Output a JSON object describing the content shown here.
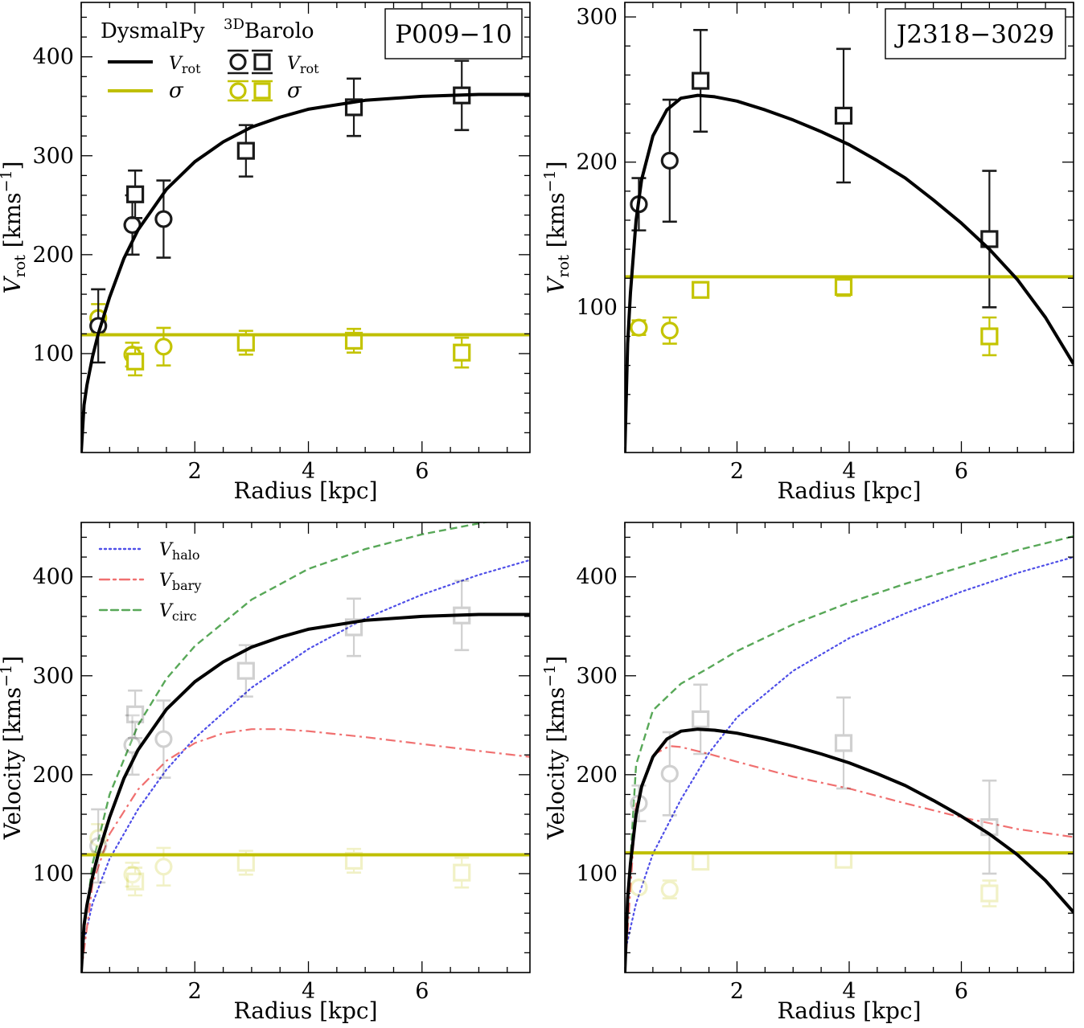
{
  "colors": {
    "model": "#000000",
    "sigma": "#bfbf00",
    "halo": "#4f4fe8",
    "bary": "#f07070",
    "circ": "#58a858",
    "data_rot": "#1a1a1a",
    "data_sig": "#c4c400"
  },
  "legend_top": {
    "dysmal_title": "DysmalPy",
    "barolo_sup": "3D",
    "barolo_main": "Barolo",
    "vrot_v": "V",
    "vrot_sub": "rot",
    "sigma": "σ"
  },
  "legend_bottom": [
    {
      "v": "V",
      "sub": "halo"
    },
    {
      "v": "V",
      "sub": "bary"
    },
    {
      "v": "V",
      "sub": "circ"
    }
  ],
  "chart_data": [
    {
      "id": "P009-10-top",
      "type": "line",
      "title": "P009−10",
      "xlabel": "Radius [kpc]",
      "ylabel_v": "V",
      "ylabel_sub": "rot",
      "ylabel_unit": " [kms",
      "ylabel_sup": "−1",
      "ylabel_end": "]",
      "xlim": [
        0,
        7.9
      ],
      "ylim": [
        0,
        455
      ],
      "xticks": [
        2,
        4,
        6
      ],
      "yticks": [
        100,
        200,
        300,
        400
      ],
      "model_vrot": [
        [
          0.0,
          0
        ],
        [
          0.05,
          48
        ],
        [
          0.1,
          68
        ],
        [
          0.2,
          97
        ],
        [
          0.3,
          120
        ],
        [
          0.5,
          157
        ],
        [
          0.75,
          196
        ],
        [
          1.0,
          225
        ],
        [
          1.5,
          266
        ],
        [
          2.0,
          294
        ],
        [
          2.5,
          314
        ],
        [
          3.0,
          329
        ],
        [
          3.5,
          339
        ],
        [
          4.0,
          347
        ],
        [
          5.0,
          356
        ],
        [
          6.0,
          360
        ],
        [
          7.0,
          362
        ],
        [
          7.9,
          362
        ]
      ],
      "model_sigma": 119,
      "circles_vrot": [
        [
          0.3,
          128,
          37
        ],
        [
          0.9,
          230,
          30
        ],
        [
          1.45,
          236,
          39
        ]
      ],
      "squares_vrot": [
        [
          0.95,
          261,
          24
        ],
        [
          2.9,
          305,
          26
        ],
        [
          4.8,
          349,
          29
        ],
        [
          6.7,
          361,
          35
        ]
      ],
      "circles_sigma": [
        [
          0.3,
          136,
          14
        ],
        [
          0.9,
          99,
          12
        ],
        [
          1.45,
          107,
          19
        ]
      ],
      "squares_sigma": [
        [
          0.95,
          92,
          14
        ],
        [
          2.9,
          111,
          12
        ],
        [
          4.8,
          113,
          12
        ],
        [
          6.7,
          101,
          15
        ]
      ]
    },
    {
      "id": "J2318-3029-top",
      "type": "line",
      "title": "J2318−3029",
      "xlabel": "Radius [kpc]",
      "ylabel_v": "V",
      "ylabel_sub": "rot",
      "ylabel_unit": " [kms",
      "ylabel_sup": "−1",
      "ylabel_end": "]",
      "xlim": [
        0,
        8.0
      ],
      "ylim": [
        0,
        310
      ],
      "xticks": [
        2,
        4,
        6
      ],
      "yticks": [
        100,
        200,
        300
      ],
      "model_vrot": [
        [
          0.0,
          0
        ],
        [
          0.05,
          75
        ],
        [
          0.1,
          110
        ],
        [
          0.2,
          160
        ],
        [
          0.3,
          188
        ],
        [
          0.5,
          218
        ],
        [
          0.75,
          236
        ],
        [
          1.0,
          244
        ],
        [
          1.3,
          246
        ],
        [
          1.6,
          245
        ],
        [
          2.0,
          242
        ],
        [
          2.5,
          236
        ],
        [
          3.0,
          229
        ],
        [
          3.5,
          221
        ],
        [
          4.0,
          212
        ],
        [
          4.5,
          201
        ],
        [
          5.0,
          189
        ],
        [
          5.5,
          174
        ],
        [
          6.0,
          158
        ],
        [
          6.5,
          140
        ],
        [
          7.0,
          119
        ],
        [
          7.5,
          93
        ],
        [
          8.0,
          61
        ]
      ],
      "model_sigma": 121,
      "circles_vrot": [
        [
          0.25,
          171,
          18
        ],
        [
          0.8,
          201,
          42
        ]
      ],
      "squares_vrot": [
        [
          1.35,
          256,
          35
        ],
        [
          3.9,
          232,
          46
        ],
        [
          6.5,
          147,
          47
        ]
      ],
      "circles_sigma": [
        [
          0.25,
          86,
          5
        ],
        [
          0.8,
          84,
          9
        ]
      ],
      "squares_sigma": [
        [
          1.35,
          112,
          4
        ],
        [
          3.9,
          114,
          6
        ],
        [
          6.5,
          80,
          13
        ]
      ]
    },
    {
      "id": "P009-10-bottom",
      "type": "line",
      "xlabel": "Radius [kpc]",
      "ylabel": "Velocity [kms",
      "ylabel_sup": "−1",
      "ylabel_end": "]",
      "xlim": [
        0,
        7.9
      ],
      "ylim": [
        0,
        455
      ],
      "xticks": [
        2,
        4,
        6
      ],
      "yticks": [
        100,
        200,
        300,
        400
      ],
      "model_vrot": [
        [
          0.0,
          0
        ],
        [
          0.05,
          48
        ],
        [
          0.1,
          68
        ],
        [
          0.2,
          97
        ],
        [
          0.3,
          120
        ],
        [
          0.5,
          157
        ],
        [
          0.75,
          196
        ],
        [
          1.0,
          225
        ],
        [
          1.5,
          266
        ],
        [
          2.0,
          294
        ],
        [
          2.5,
          314
        ],
        [
          3.0,
          329
        ],
        [
          3.5,
          339
        ],
        [
          4.0,
          347
        ],
        [
          5.0,
          356
        ],
        [
          6.0,
          360
        ],
        [
          7.0,
          362
        ],
        [
          7.9,
          362
        ]
      ],
      "model_sigma": 119,
      "v_halo": [
        [
          0.0,
          20
        ],
        [
          0.2,
          70
        ],
        [
          0.5,
          115
        ],
        [
          1.0,
          165
        ],
        [
          1.5,
          205
        ],
        [
          2.0,
          237
        ],
        [
          3.0,
          288
        ],
        [
          4.0,
          327
        ],
        [
          5.0,
          358
        ],
        [
          6.0,
          382
        ],
        [
          7.0,
          402
        ],
        [
          7.9,
          417
        ]
      ],
      "v_bary": [
        [
          0.0,
          0
        ],
        [
          0.2,
          90
        ],
        [
          0.5,
          140
        ],
        [
          1.0,
          185
        ],
        [
          1.5,
          214
        ],
        [
          2.0,
          232
        ],
        [
          2.5,
          242
        ],
        [
          3.0,
          246
        ],
        [
          3.5,
          246
        ],
        [
          4.0,
          244
        ],
        [
          5.0,
          238
        ],
        [
          6.0,
          231
        ],
        [
          7.0,
          224
        ],
        [
          7.9,
          218
        ]
      ],
      "v_circ": [
        [
          0.0,
          20
        ],
        [
          0.2,
          110
        ],
        [
          0.5,
          180
        ],
        [
          1.0,
          250
        ],
        [
          1.5,
          297
        ],
        [
          2.0,
          330
        ],
        [
          3.0,
          377
        ],
        [
          4.0,
          408
        ],
        [
          5.0,
          428
        ],
        [
          6.0,
          443
        ],
        [
          7.0,
          454
        ],
        [
          7.9,
          463
        ]
      ],
      "circles_vrot": [
        [
          0.3,
          128,
          37
        ],
        [
          0.9,
          230,
          30
        ],
        [
          1.45,
          236,
          39
        ]
      ],
      "squares_vrot": [
        [
          0.95,
          261,
          24
        ],
        [
          2.9,
          305,
          26
        ],
        [
          4.8,
          349,
          29
        ],
        [
          6.7,
          361,
          35
        ]
      ],
      "circles_sigma": [
        [
          0.3,
          136,
          14
        ],
        [
          0.9,
          99,
          12
        ],
        [
          1.45,
          107,
          19
        ]
      ],
      "squares_sigma": [
        [
          0.95,
          92,
          14
        ],
        [
          2.9,
          111,
          12
        ],
        [
          4.8,
          113,
          12
        ],
        [
          6.7,
          101,
          15
        ]
      ]
    },
    {
      "id": "J2318-3029-bottom",
      "type": "line",
      "xlabel": "Radius [kpc]",
      "ylabel": "Velocity [kms",
      "ylabel_sup": "−1",
      "ylabel_end": "]",
      "xlim": [
        0,
        8.0
      ],
      "ylim": [
        0,
        455
      ],
      "xticks": [
        2,
        4,
        6
      ],
      "yticks": [
        100,
        200,
        300,
        400
      ],
      "model_vrot": [
        [
          0.0,
          0
        ],
        [
          0.05,
          75
        ],
        [
          0.1,
          110
        ],
        [
          0.2,
          160
        ],
        [
          0.3,
          188
        ],
        [
          0.5,
          218
        ],
        [
          0.75,
          236
        ],
        [
          1.0,
          244
        ],
        [
          1.3,
          246
        ],
        [
          1.6,
          245
        ],
        [
          2.0,
          242
        ],
        [
          2.5,
          236
        ],
        [
          3.0,
          229
        ],
        [
          3.5,
          221
        ],
        [
          4.0,
          212
        ],
        [
          4.5,
          201
        ],
        [
          5.0,
          189
        ],
        [
          5.5,
          174
        ],
        [
          6.0,
          158
        ],
        [
          6.5,
          140
        ],
        [
          7.0,
          119
        ],
        [
          7.5,
          93
        ],
        [
          8.0,
          61
        ]
      ],
      "model_sigma": 121,
      "v_halo": [
        [
          0.0,
          20
        ],
        [
          0.2,
          70
        ],
        [
          0.5,
          120
        ],
        [
          1.0,
          175
        ],
        [
          1.5,
          222
        ],
        [
          2.0,
          258
        ],
        [
          3.0,
          305
        ],
        [
          4.0,
          338
        ],
        [
          5.0,
          363
        ],
        [
          6.0,
          385
        ],
        [
          7.0,
          404
        ],
        [
          8.0,
          420
        ]
      ],
      "v_bary": [
        [
          0.0,
          0
        ],
        [
          0.2,
          170
        ],
        [
          0.5,
          220
        ],
        [
          0.8,
          229
        ],
        [
          1.0,
          228
        ],
        [
          1.5,
          221
        ],
        [
          2.0,
          213
        ],
        [
          3.0,
          198
        ],
        [
          4.0,
          186
        ],
        [
          5.0,
          171
        ],
        [
          6.0,
          157
        ],
        [
          7.0,
          145
        ],
        [
          8.0,
          137
        ]
      ],
      "v_circ": [
        [
          0.0,
          20
        ],
        [
          0.2,
          210
        ],
        [
          0.5,
          265
        ],
        [
          1.0,
          292
        ],
        [
          1.5,
          308
        ],
        [
          2.0,
          325
        ],
        [
          3.0,
          352
        ],
        [
          4.0,
          374
        ],
        [
          5.0,
          393
        ],
        [
          6.0,
          410
        ],
        [
          7.0,
          427
        ],
        [
          8.0,
          441
        ]
      ],
      "circles_vrot": [
        [
          0.25,
          171,
          18
        ],
        [
          0.8,
          201,
          42
        ]
      ],
      "squares_vrot": [
        [
          1.35,
          256,
          35
        ],
        [
          3.9,
          232,
          46
        ],
        [
          6.5,
          147,
          47
        ]
      ],
      "circles_sigma": [
        [
          0.25,
          86,
          5
        ],
        [
          0.8,
          84,
          9
        ]
      ],
      "squares_sigma": [
        [
          1.35,
          112,
          4
        ],
        [
          3.9,
          114,
          6
        ],
        [
          6.5,
          80,
          13
        ]
      ]
    }
  ]
}
